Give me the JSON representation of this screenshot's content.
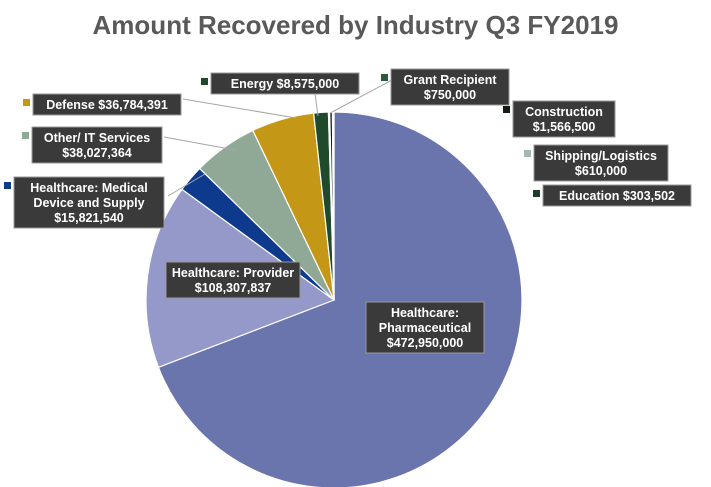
{
  "chart_data": {
    "type": "pie",
    "title": "Amount Recovered by Industry Q3 FY2019",
    "slices": [
      {
        "name": "Healthcare: Pharmaceutical",
        "value": 472950000,
        "label": "$472,950,000",
        "color": "#6b75ad"
      },
      {
        "name": "Healthcare: Provider",
        "value": 108307837,
        "label": "$108,307,837",
        "color": "#9599c9"
      },
      {
        "name": "Healthcare: Medical Device and Supply",
        "value": 15821540,
        "label": "$15,821,540",
        "color": "#0d3a8c"
      },
      {
        "name": "Other/ IT Services",
        "value": 38027364,
        "label": "$38,027,364",
        "color": "#8fa996"
      },
      {
        "name": "Defense",
        "value": 36784391,
        "label": "$36,784,391",
        "color": "#c59716"
      },
      {
        "name": "Energy",
        "value": 8575000,
        "label": "$8,575,000",
        "color": "#1f4a2c"
      },
      {
        "name": "Grant Recipient",
        "value": 750000,
        "label": "$750,000",
        "color": "#2d5a3b"
      },
      {
        "name": "Construction",
        "value": 1566500,
        "label": "$1,566,500",
        "color": "#0e1e12"
      },
      {
        "name": "Shipping/Logistics",
        "value": 610000,
        "label": "$610,000",
        "color": "#a7b7ad"
      },
      {
        "name": "Education",
        "value": 303502,
        "label": "$303,502",
        "color": "#1d3d26"
      }
    ],
    "legend": "none"
  }
}
